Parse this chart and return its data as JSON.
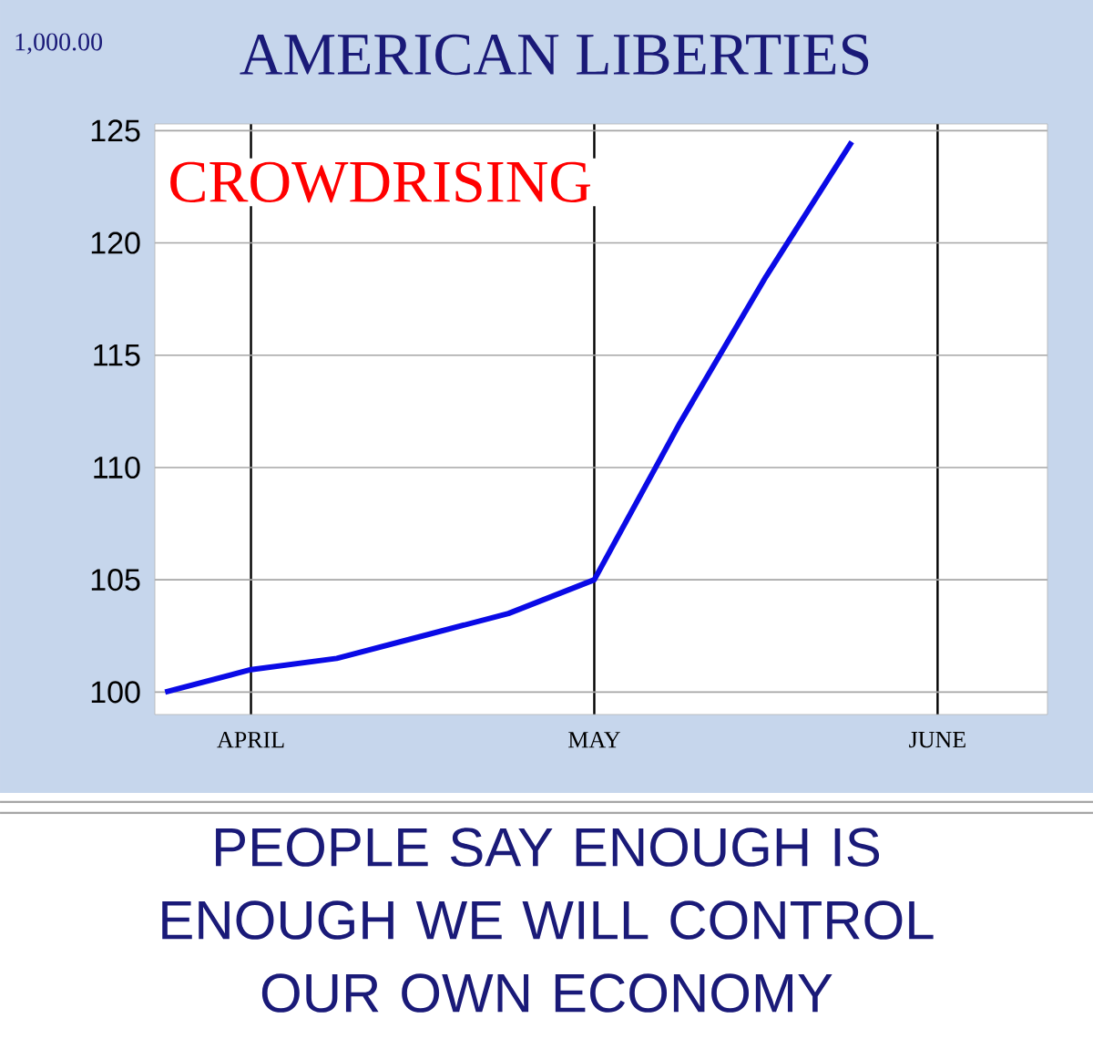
{
  "chart_data": {
    "type": "line",
    "title": "AMERICAN LIBERTIES",
    "subtitle": "CROWDRISING",
    "annotations": [
      "1,000.00",
      "PEOPLE SAY ENOUGH IS ENOUGH WE WILL CONTROL OUR OWN ECONOMY"
    ],
    "categories": [
      null,
      "APRIL",
      null,
      null,
      null,
      "MAY",
      null,
      null,
      null,
      "JUNE"
    ],
    "values": [
      100,
      101,
      101.5,
      102.5,
      103.5,
      105,
      112,
      118.5,
      124.5,
      null
    ],
    "color": "#0a0ae6",
    "ylim": [
      99,
      125.3
    ],
    "yticks": [
      100,
      105,
      110,
      115,
      120,
      125
    ],
    "grid": true
  }
}
